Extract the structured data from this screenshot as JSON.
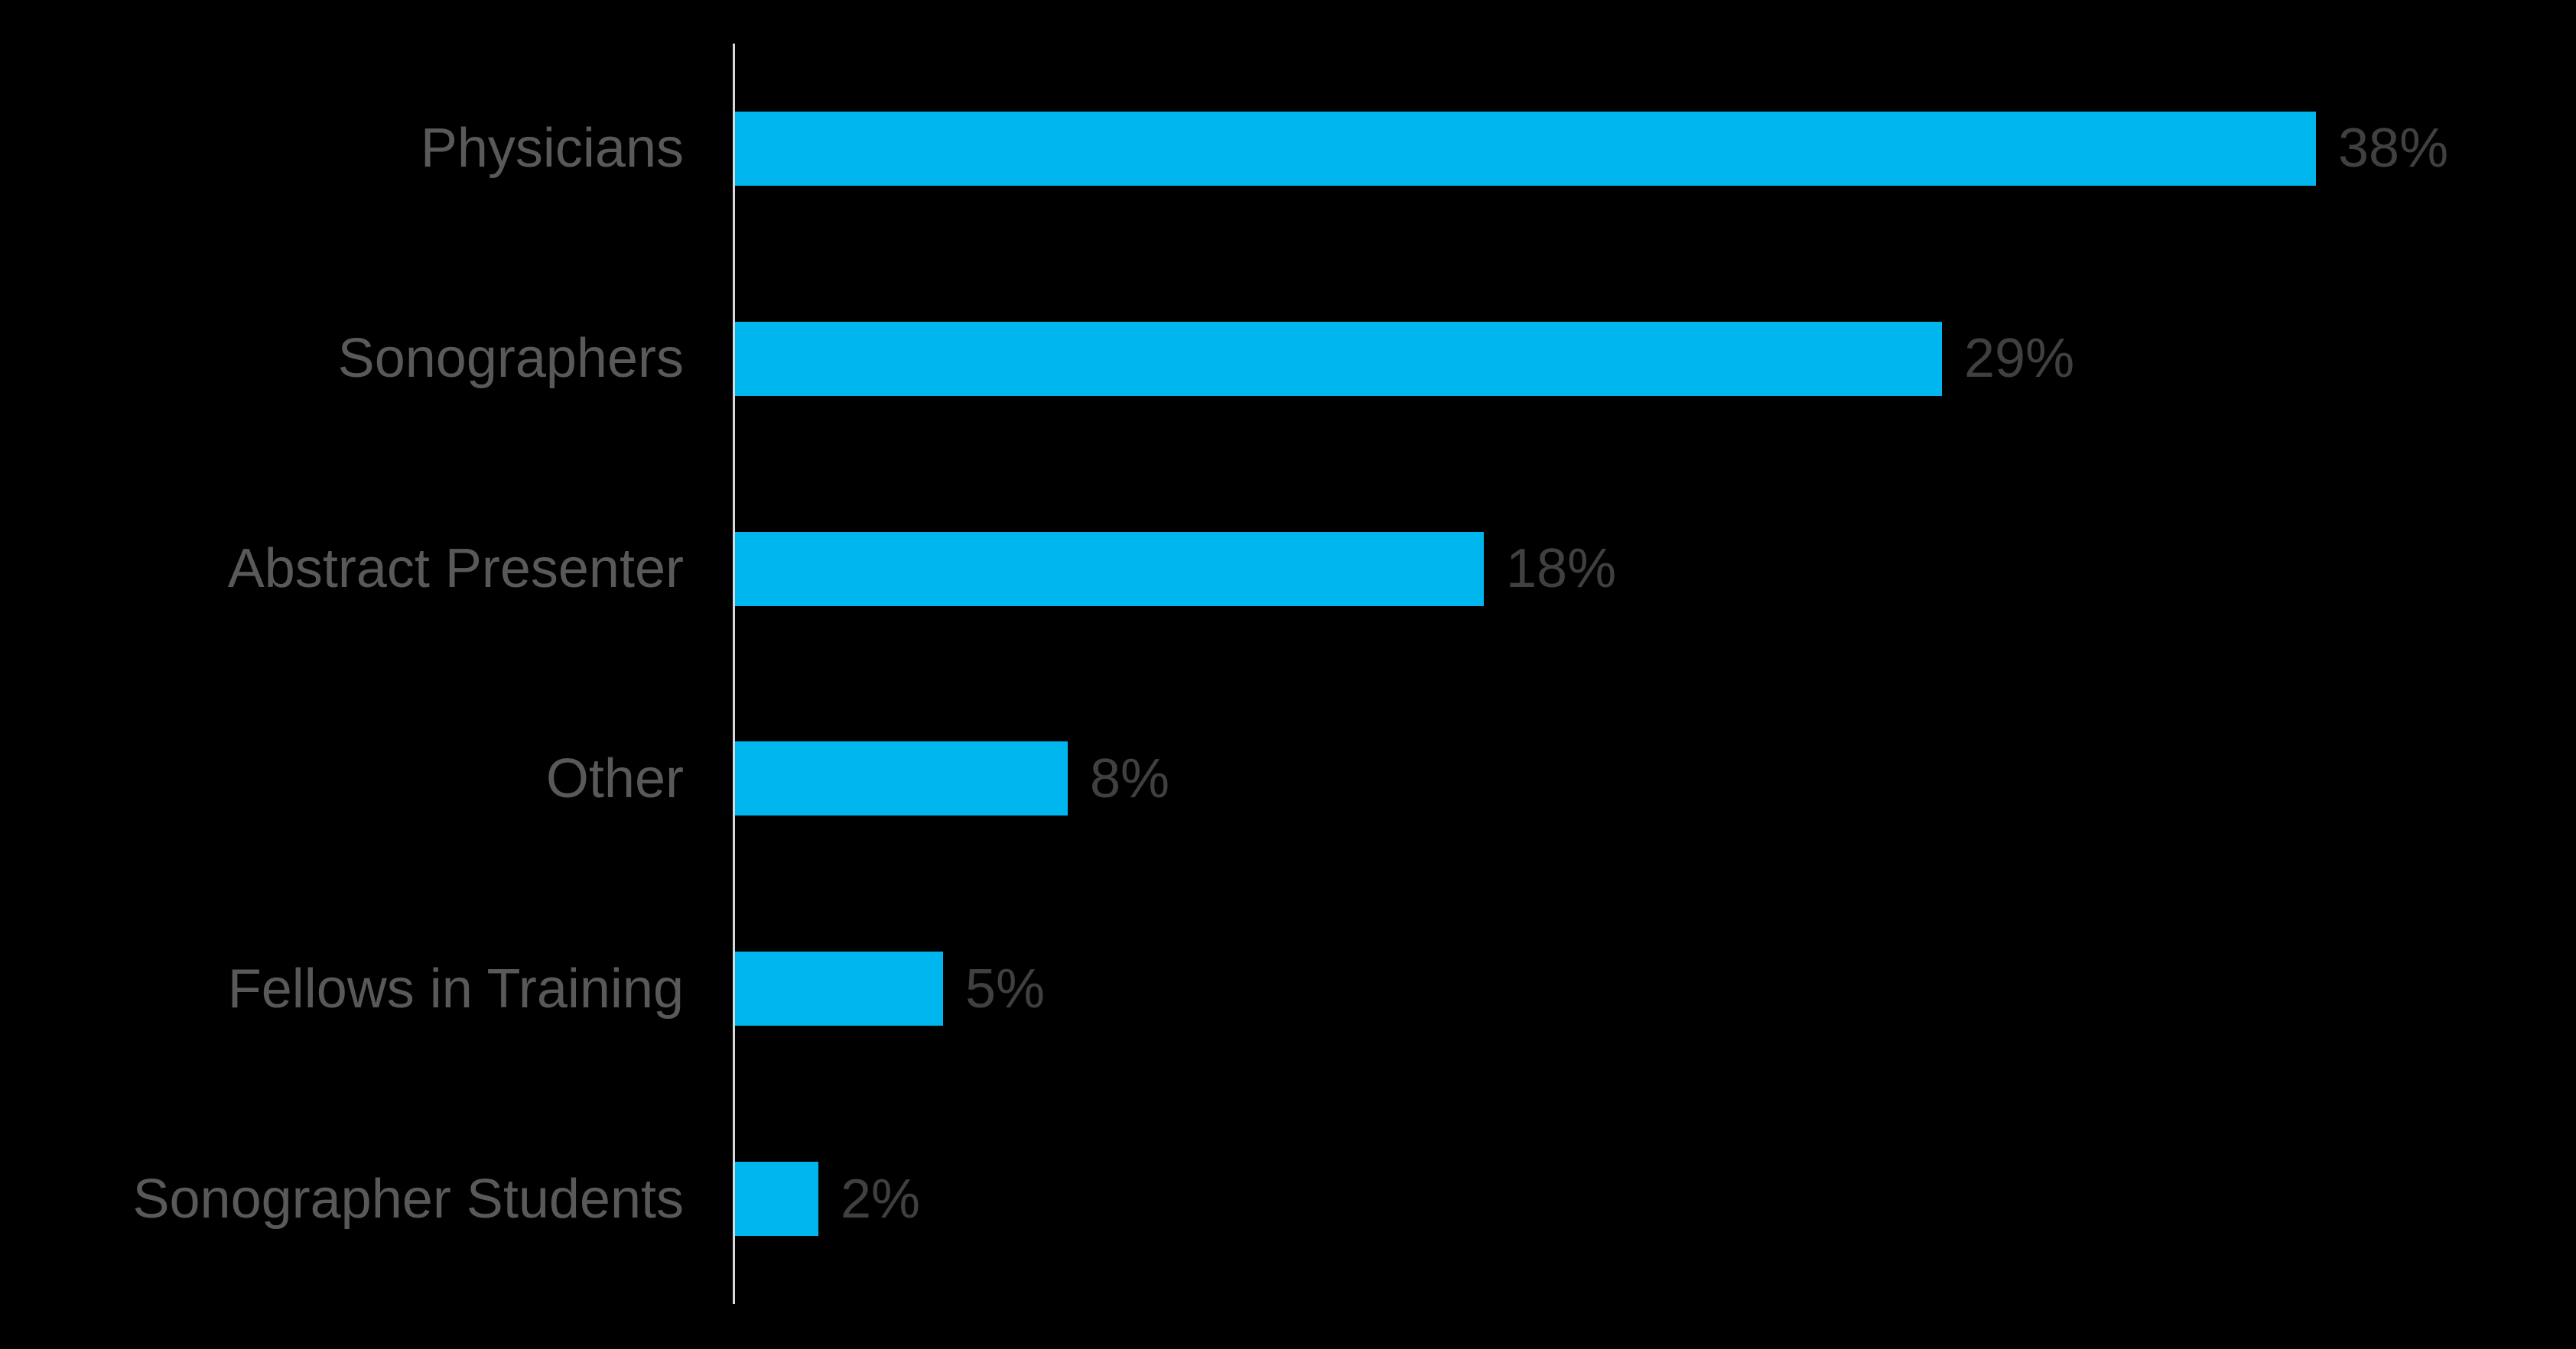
{
  "chart_data": {
    "type": "bar",
    "orientation": "horizontal",
    "title": "",
    "xlabel": "",
    "ylabel": "",
    "categories": [
      "Physicians",
      "Sonographers",
      "Abstract Presenter",
      "Other",
      "Fellows in Training",
      "Sonographer Students"
    ],
    "values": [
      38,
      29,
      18,
      8,
      5,
      2
    ],
    "value_labels": [
      "38%",
      "29%",
      "18%",
      "8%",
      "5%",
      "2%"
    ],
    "unit": "%",
    "xlim": [
      0,
      44
    ],
    "grid": false,
    "legend": false,
    "axis_line": "left-vertical",
    "colors": {
      "background": "#000000",
      "bar": "#00B6EE",
      "category_label": "#595959",
      "value_label": "#404040",
      "axis_line": "#D9D9D9"
    }
  }
}
